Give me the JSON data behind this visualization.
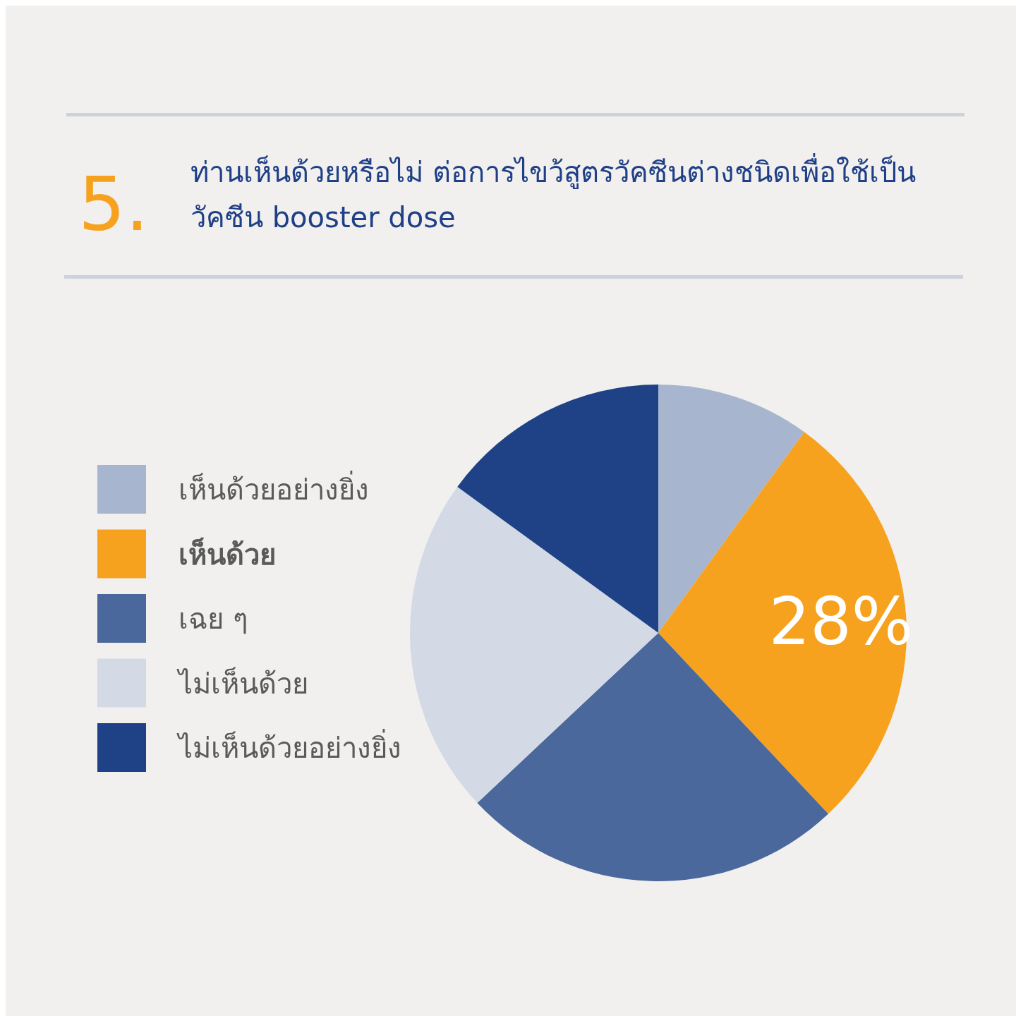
{
  "chart_data": {
    "type": "pie",
    "title": "ท่านเห็นด้วยหรือไม่ ต่อการไขว้สูตรวัคซีนต่างชนิดเพื่อใช้เป็น\nวัคซีน booster dose",
    "annotations": [
      "5."
    ],
    "categories": [
      "เห็นด้วยอย่างยิ่ง",
      "เห็นด้วย",
      "เฉย ๆ",
      "ไม่เห็นด้วย",
      "ไม่เห็นด้วยอย่างยิ่ง"
    ],
    "values": [
      10,
      28,
      25,
      22,
      15
    ],
    "colors": [
      "#a7b5cf",
      "#f7a21e",
      "#4b689c",
      "#d3dae6",
      "#1f4287"
    ],
    "value_labels": [
      null,
      "28%",
      null,
      null,
      null
    ],
    "legend": "left"
  }
}
